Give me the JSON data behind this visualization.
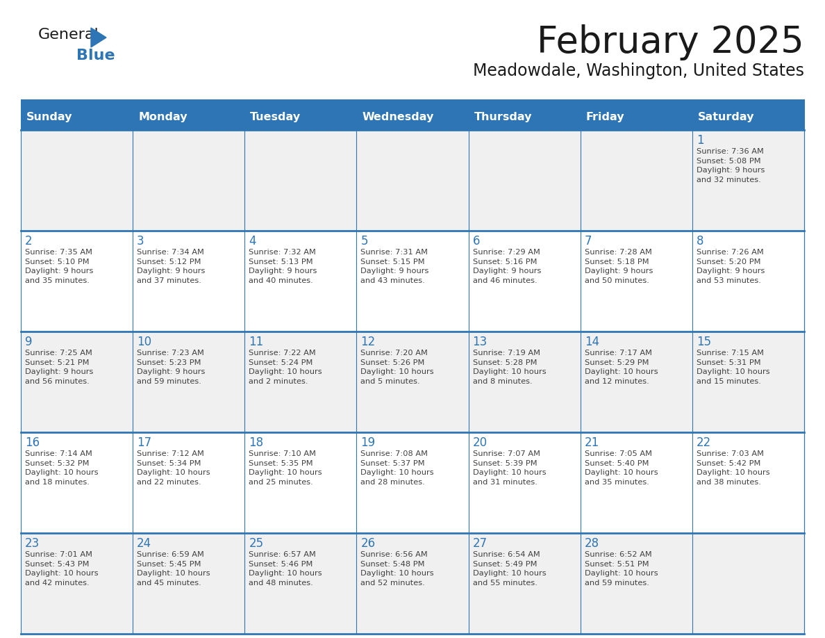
{
  "title": "February 2025",
  "subtitle": "Meadowdale, Washington, United States",
  "header_bg": "#2E75B6",
  "header_text_color": "#FFFFFF",
  "cell_bg_white": "#FFFFFF",
  "cell_bg_gray": "#F0F0F0",
  "border_color": "#2E75B6",
  "day_number_color": "#2E75B6",
  "info_text_color": "#404040",
  "title_color": "#1a1a1a",
  "days_of_week": [
    "Sunday",
    "Monday",
    "Tuesday",
    "Wednesday",
    "Thursday",
    "Friday",
    "Saturday"
  ],
  "weeks": [
    [
      {
        "day": "",
        "info": ""
      },
      {
        "day": "",
        "info": ""
      },
      {
        "day": "",
        "info": ""
      },
      {
        "day": "",
        "info": ""
      },
      {
        "day": "",
        "info": ""
      },
      {
        "day": "",
        "info": ""
      },
      {
        "day": "1",
        "info": "Sunrise: 7:36 AM\nSunset: 5:08 PM\nDaylight: 9 hours\nand 32 minutes."
      }
    ],
    [
      {
        "day": "2",
        "info": "Sunrise: 7:35 AM\nSunset: 5:10 PM\nDaylight: 9 hours\nand 35 minutes."
      },
      {
        "day": "3",
        "info": "Sunrise: 7:34 AM\nSunset: 5:12 PM\nDaylight: 9 hours\nand 37 minutes."
      },
      {
        "day": "4",
        "info": "Sunrise: 7:32 AM\nSunset: 5:13 PM\nDaylight: 9 hours\nand 40 minutes."
      },
      {
        "day": "5",
        "info": "Sunrise: 7:31 AM\nSunset: 5:15 PM\nDaylight: 9 hours\nand 43 minutes."
      },
      {
        "day": "6",
        "info": "Sunrise: 7:29 AM\nSunset: 5:16 PM\nDaylight: 9 hours\nand 46 minutes."
      },
      {
        "day": "7",
        "info": "Sunrise: 7:28 AM\nSunset: 5:18 PM\nDaylight: 9 hours\nand 50 minutes."
      },
      {
        "day": "8",
        "info": "Sunrise: 7:26 AM\nSunset: 5:20 PM\nDaylight: 9 hours\nand 53 minutes."
      }
    ],
    [
      {
        "day": "9",
        "info": "Sunrise: 7:25 AM\nSunset: 5:21 PM\nDaylight: 9 hours\nand 56 minutes."
      },
      {
        "day": "10",
        "info": "Sunrise: 7:23 AM\nSunset: 5:23 PM\nDaylight: 9 hours\nand 59 minutes."
      },
      {
        "day": "11",
        "info": "Sunrise: 7:22 AM\nSunset: 5:24 PM\nDaylight: 10 hours\nand 2 minutes."
      },
      {
        "day": "12",
        "info": "Sunrise: 7:20 AM\nSunset: 5:26 PM\nDaylight: 10 hours\nand 5 minutes."
      },
      {
        "day": "13",
        "info": "Sunrise: 7:19 AM\nSunset: 5:28 PM\nDaylight: 10 hours\nand 8 minutes."
      },
      {
        "day": "14",
        "info": "Sunrise: 7:17 AM\nSunset: 5:29 PM\nDaylight: 10 hours\nand 12 minutes."
      },
      {
        "day": "15",
        "info": "Sunrise: 7:15 AM\nSunset: 5:31 PM\nDaylight: 10 hours\nand 15 minutes."
      }
    ],
    [
      {
        "day": "16",
        "info": "Sunrise: 7:14 AM\nSunset: 5:32 PM\nDaylight: 10 hours\nand 18 minutes."
      },
      {
        "day": "17",
        "info": "Sunrise: 7:12 AM\nSunset: 5:34 PM\nDaylight: 10 hours\nand 22 minutes."
      },
      {
        "day": "18",
        "info": "Sunrise: 7:10 AM\nSunset: 5:35 PM\nDaylight: 10 hours\nand 25 minutes."
      },
      {
        "day": "19",
        "info": "Sunrise: 7:08 AM\nSunset: 5:37 PM\nDaylight: 10 hours\nand 28 minutes."
      },
      {
        "day": "20",
        "info": "Sunrise: 7:07 AM\nSunset: 5:39 PM\nDaylight: 10 hours\nand 31 minutes."
      },
      {
        "day": "21",
        "info": "Sunrise: 7:05 AM\nSunset: 5:40 PM\nDaylight: 10 hours\nand 35 minutes."
      },
      {
        "day": "22",
        "info": "Sunrise: 7:03 AM\nSunset: 5:42 PM\nDaylight: 10 hours\nand 38 minutes."
      }
    ],
    [
      {
        "day": "23",
        "info": "Sunrise: 7:01 AM\nSunset: 5:43 PM\nDaylight: 10 hours\nand 42 minutes."
      },
      {
        "day": "24",
        "info": "Sunrise: 6:59 AM\nSunset: 5:45 PM\nDaylight: 10 hours\nand 45 minutes."
      },
      {
        "day": "25",
        "info": "Sunrise: 6:57 AM\nSunset: 5:46 PM\nDaylight: 10 hours\nand 48 minutes."
      },
      {
        "day": "26",
        "info": "Sunrise: 6:56 AM\nSunset: 5:48 PM\nDaylight: 10 hours\nand 52 minutes."
      },
      {
        "day": "27",
        "info": "Sunrise: 6:54 AM\nSunset: 5:49 PM\nDaylight: 10 hours\nand 55 minutes."
      },
      {
        "day": "28",
        "info": "Sunrise: 6:52 AM\nSunset: 5:51 PM\nDaylight: 10 hours\nand 59 minutes."
      },
      {
        "day": "",
        "info": ""
      }
    ]
  ]
}
